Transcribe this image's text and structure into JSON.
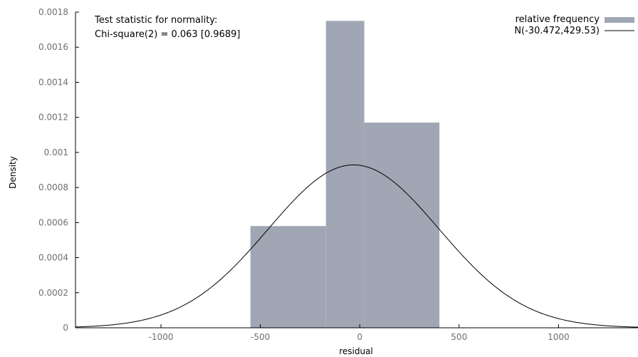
{
  "chart_data": {
    "type": "bar",
    "xlabel": "residual",
    "ylabel": "Density",
    "xlim": [
      -1430,
      1400
    ],
    "ylim": [
      0,
      0.0018
    ],
    "x_ticks": [
      -1000,
      -500,
      0,
      500,
      1000
    ],
    "x_tick_labels": [
      "-1000",
      "-500",
      "0",
      "500",
      "1000"
    ],
    "y_ticks": [
      0,
      0.0002,
      0.0004,
      0.0006,
      0.0008,
      0.001,
      0.0012,
      0.0014,
      0.0016,
      0.0018
    ],
    "y_tick_labels": [
      "0",
      "0.0002",
      "0.0004",
      "0.0006",
      "0.0008",
      "0.001",
      "0.0012",
      "0.0014",
      "0.0016",
      "0.0018"
    ],
    "annotation_lines": [
      "Test statistic for normality:",
      "Chi-square(2) = 0.063 [0.9689]"
    ],
    "bars": [
      {
        "x0": -550,
        "x1": -170,
        "value": 0.00058
      },
      {
        "x0": -170,
        "x1": 23,
        "value": 0.00175
      },
      {
        "x0": 23,
        "x1": 401,
        "value": 0.00117
      }
    ],
    "series": [
      {
        "name": "relative frequency",
        "kind": "histogram",
        "color": "#a0a6b4"
      },
      {
        "name": "N(-30.472,429.53)",
        "kind": "normal-curve",
        "mean": -30.472,
        "sd": 429.53,
        "color": "#000000"
      }
    ],
    "legend_position": "top-right",
    "grid": false
  }
}
